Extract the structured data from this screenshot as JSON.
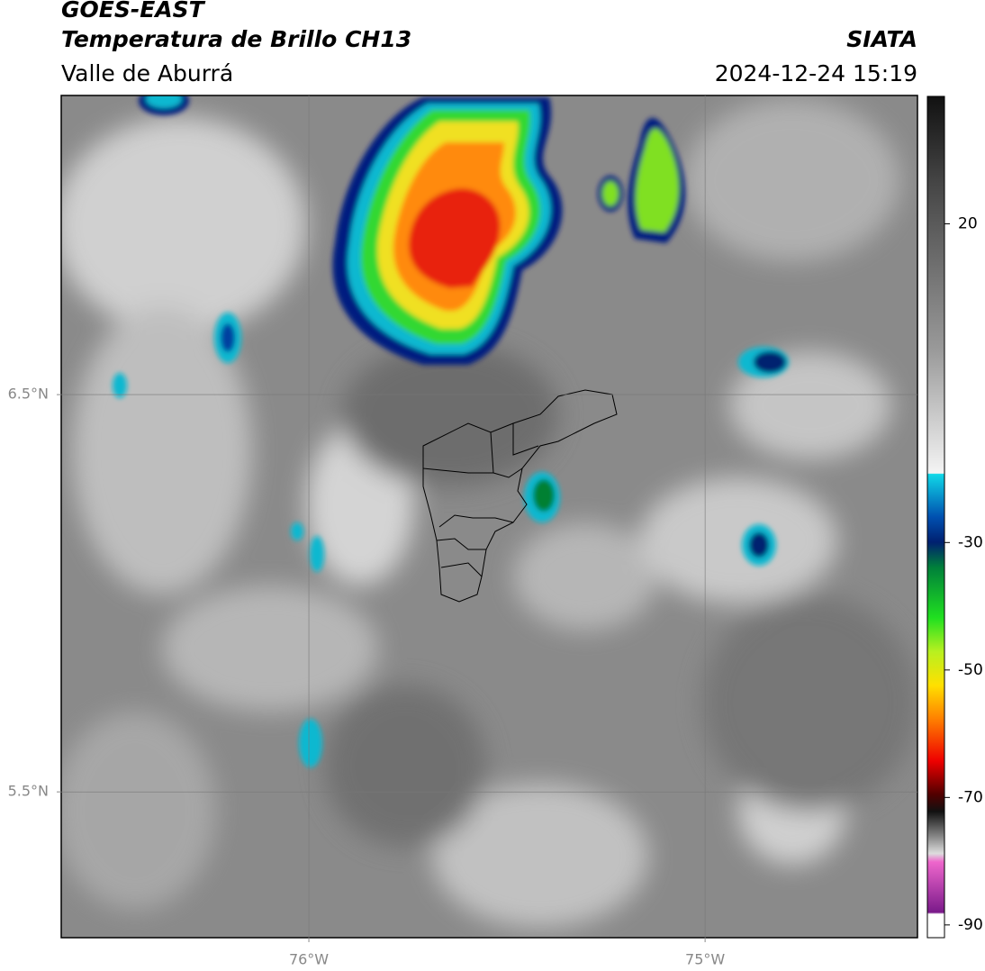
{
  "header": {
    "title": "GOES-EAST",
    "subtitle": "Temperatura de Brillo CH13",
    "region": "Valle de Aburrá",
    "agency": "SIATA",
    "datetime": "2024-12-24 15:19"
  },
  "map": {
    "xlim": [
      -76.625,
      -74.464
    ],
    "ylim": [
      5.133,
      7.253
    ],
    "xticks": [
      {
        "value": -76,
        "label": "76°W"
      },
      {
        "value": -75,
        "label": "75°W"
      }
    ],
    "yticks": [
      {
        "value": 6.5,
        "label": "6.5°N"
      },
      {
        "value": 5.5,
        "label": "5.5°N"
      }
    ],
    "grid": true
  },
  "colorbar": {
    "lim": [
      40,
      -92
    ],
    "ticks": [
      20,
      -30,
      -50,
      -70,
      -90
    ]
  }
}
